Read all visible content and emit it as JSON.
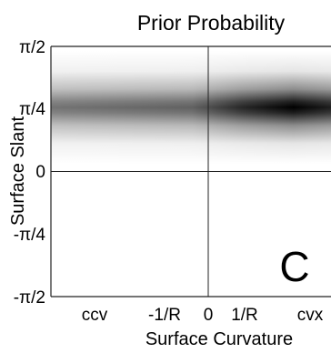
{
  "chart_data": {
    "type": "heatmap",
    "title": "Prior Probability",
    "xlabel": "Surface Curvature",
    "ylabel": "Surface Slant",
    "x_tick_labels": [
      "ccv",
      "-1/R",
      "0",
      "1/R",
      "cvx"
    ],
    "y_tick_labels": [
      "π/2",
      "π/4",
      "0",
      "-π/4",
      "-π/2"
    ],
    "xlim": [
      "ccv",
      "cvx"
    ],
    "ylim": [
      "-π/2",
      "π/2"
    ],
    "reference_lines": {
      "x": "0",
      "y": "0"
    },
    "panel_label": "C",
    "colormap": "white to black (darker = higher probability)",
    "density": {
      "slant_peak": "π/4",
      "description": "horizontal band centered at slant π/4, darkest toward convex curvature (between 1/R and cvx)"
    },
    "colors": {
      "low": "#ffffff",
      "high": "#000000",
      "axes": "#222222"
    }
  }
}
